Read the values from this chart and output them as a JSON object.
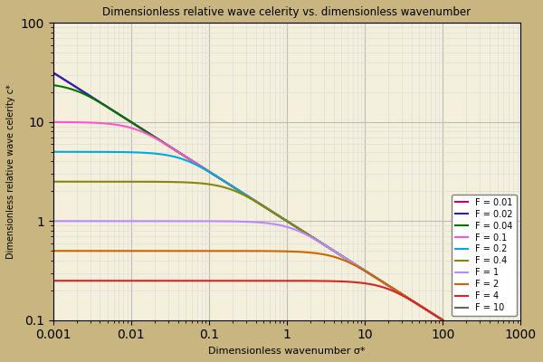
{
  "title": "Dimensionless relative wave celerity vs. dimensionless wavenumber",
  "xlabel": "Dimensionless wavenumber σ*",
  "ylabel": "Dimensionless relative wave celerity c*",
  "xlim": [
    0.001,
    1000
  ],
  "ylim": [
    0.1,
    100
  ],
  "background_color": "#c8b580",
  "plot_bg_color": "#f5f0dc",
  "grid_major_color": "#bbbbbb",
  "grid_minor_color": "#dddddd",
  "froude_numbers": [
    0.01,
    0.02,
    0.04,
    0.1,
    0.2,
    0.4,
    1.0,
    2.0,
    4.0,
    10.0
  ],
  "froude_keys": [
    "0.01",
    "0.02",
    "0.04",
    "0.1",
    "0.2",
    "0.4",
    "1",
    "2",
    "4",
    "10"
  ],
  "colors": {
    "0.01": "#cc0066",
    "0.02": "#2222bb",
    "0.04": "#007700",
    "0.1": "#ff55cc",
    "0.2": "#00aadd",
    "0.4": "#888800",
    "1": "#bb88ff",
    "2": "#cc6600",
    "4": "#dd2222",
    "10": "#666666"
  },
  "linewidth": 1.5,
  "legend_labels": {
    "0.01": "F = 0.01",
    "0.02": "F = 0.02",
    "0.04": "F = 0.04",
    "0.1": "F = 0.1",
    "0.2": "F = 0.2",
    "0.4": "F = 0.4",
    "1": "F = 1",
    "2": "F = 2",
    "4": "F = 4",
    "10": "F = 10"
  }
}
